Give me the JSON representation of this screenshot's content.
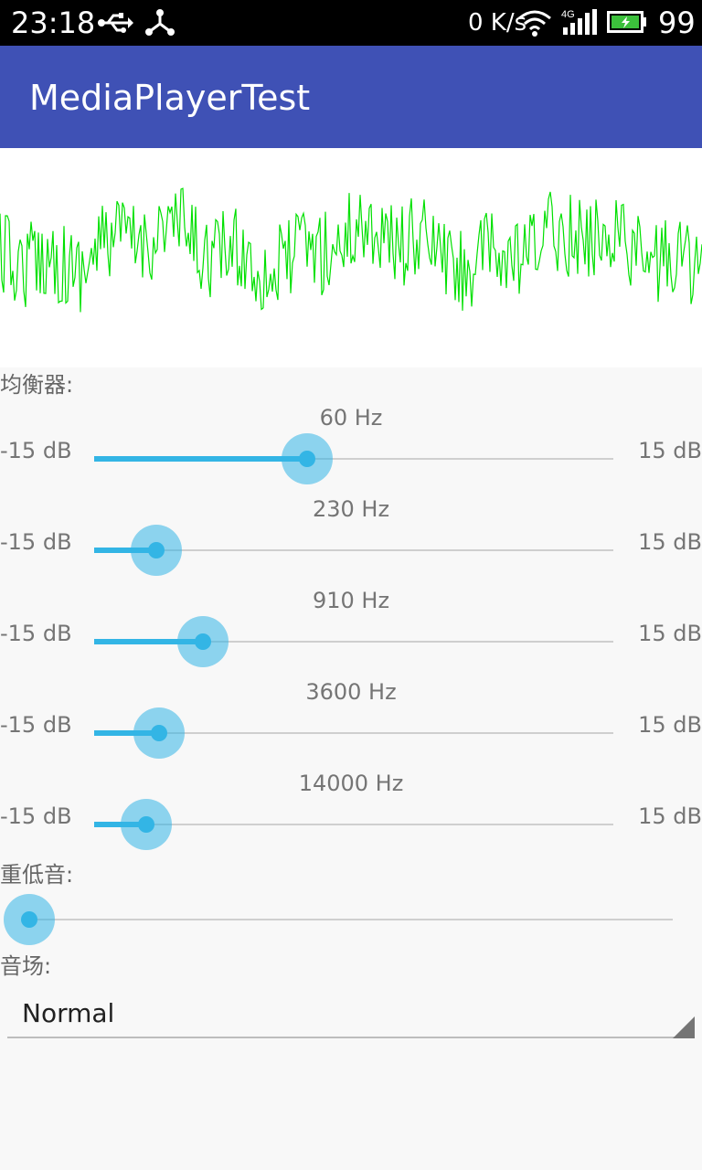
{
  "status_bar": {
    "time": "23:18",
    "network_speed": "0 K/s",
    "network_type": "4G",
    "battery_level": "99",
    "icons": [
      "usb-icon",
      "debug-icon",
      "wifi-icon",
      "signal-icon",
      "battery-icon"
    ]
  },
  "app_bar": {
    "title": "MediaPlayerTest",
    "color": "#3f51b5"
  },
  "visualizer": {
    "wave_color": "#00e000"
  },
  "equalizer": {
    "label": "均衡器:",
    "bands": [
      {
        "freq": "60 Hz",
        "min": "-15 dB",
        "max": "15 dB",
        "level": 0.41
      },
      {
        "freq": "230 Hz",
        "min": "-15 dB",
        "max": "15 dB",
        "level": 0.12
      },
      {
        "freq": "910 Hz",
        "min": "-15 dB",
        "max": "15 dB",
        "level": 0.21
      },
      {
        "freq": "3600 Hz",
        "min": "-15 dB",
        "max": "15 dB",
        "level": 0.125
      },
      {
        "freq": "14000 Hz",
        "min": "-15 dB",
        "max": "15 dB",
        "level": 0.1
      }
    ]
  },
  "bass_boost": {
    "label": "重低音:",
    "level": 0.0
  },
  "sound_field": {
    "label": "音场:",
    "selected": "Normal"
  },
  "accent_color": "#33b5e5"
}
